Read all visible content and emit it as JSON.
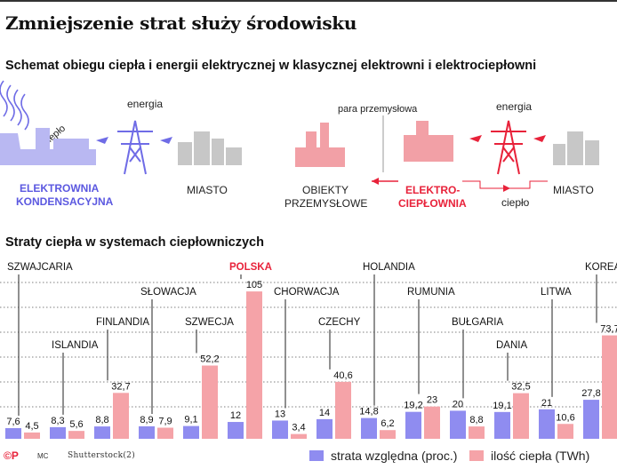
{
  "title": "Zmniejszenie strat służy środowisku",
  "scheme": {
    "heading": "Schemat obiegu ciepła i energii elektrycznej w klasycznej elektrowni i elektrociepłowni",
    "left_heat": "ciepło",
    "left_energy": "energia",
    "plant1_line1": "ELEKTROWNIA",
    "plant1_line2": "KONDENSACYJNA",
    "city": "MIASTO",
    "steam": "para przemysłowa",
    "right_energy": "energia",
    "industry_line1": "OBIEKTY",
    "industry_line2": "PRZEMYSŁOWE",
    "plant2_line1": "ELEKTRO-",
    "plant2_line2": "CIEPŁOWNIA",
    "right_city": "MIASTO",
    "right_heat": "ciepło",
    "colors": {
      "blue": "#6f6ce6",
      "red": "#e8223a",
      "pink": "#f5a3a8",
      "gray": "#c7c7c7"
    }
  },
  "chart_heading": "Straty ciepła w systemach ciepłowniczych",
  "chart_data": {
    "type": "bar",
    "categories": [
      "SZWAJCARIA",
      "ISLANDIA",
      "FINLANDIA",
      "SŁOWACJA",
      "SZWECJA",
      "POLSKA",
      "CHORWACJA",
      "CZECHY",
      "HOLANDIA",
      "RUMUNIA",
      "BUŁGARIA",
      "DANIA",
      "LITWA",
      "KOREA"
    ],
    "highlight": "POLSKA",
    "series": [
      {
        "name": "strata względna (proc.)",
        "color": "#8f8cf0",
        "values": [
          7.6,
          8.3,
          8.8,
          8.9,
          9.1,
          12,
          13,
          14,
          14.8,
          19.2,
          20,
          19.1,
          21,
          27.8
        ],
        "labels": [
          "7,6",
          "8,3",
          "8,8",
          "8,9",
          "9,1",
          "12",
          "13",
          "14",
          "14,8",
          "19,2",
          "20",
          "19,1",
          "21",
          "27,8"
        ]
      },
      {
        "name": "ilość ciepła (TWh)",
        "color": "#f5a3a8",
        "values": [
          4.5,
          5.6,
          32.7,
          7.9,
          52.2,
          105,
          3.4,
          40.6,
          6.2,
          23,
          8.8,
          32.5,
          10.6,
          73.7
        ],
        "labels": [
          "4,5",
          "5,6",
          "32,7",
          "7,9",
          "52,2",
          "105",
          "3,4",
          "40,6",
          "6,2",
          "23",
          "8,8",
          "32,5",
          "10,6",
          "73,7"
        ]
      }
    ],
    "grid": true,
    "legend": "bottom-right"
  },
  "footer": {
    "copyright": "©P",
    "author": "MC",
    "source": "Shutterstock(2)"
  }
}
